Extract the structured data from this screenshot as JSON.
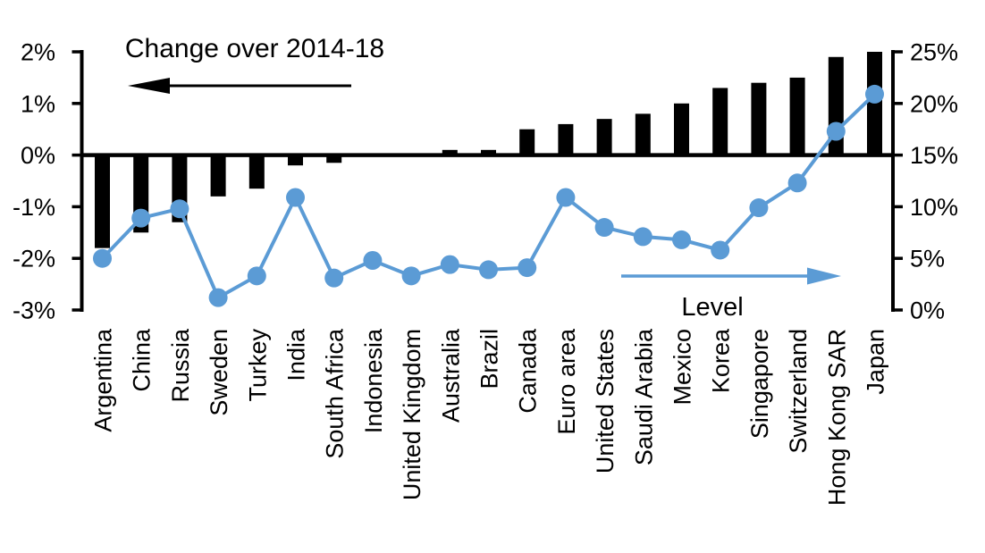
{
  "chart_data": {
    "type": "bar",
    "subtype": "bar-line-combo",
    "title": "",
    "categories": [
      "Argentina",
      "China",
      "Russia",
      "Sweden",
      "Turkey",
      "India",
      "South Africa",
      "Indonesia",
      "United Kingdom",
      "Australia",
      "Brazil",
      "Canada",
      "Euro area",
      "United States",
      "Saudi Arabia",
      "Mexico",
      "Korea",
      "Singapore",
      "Switzerland",
      "Hong Kong SAR",
      "Japan"
    ],
    "series": [
      {
        "name": "Change over 2014-18",
        "type": "bar",
        "axis": "left",
        "color": "#000000",
        "values": [
          -1.8,
          -1.5,
          -1.3,
          -0.8,
          -0.65,
          -0.2,
          -0.15,
          0,
          0,
          0.1,
          0.1,
          0.5,
          0.6,
          0.7,
          0.8,
          1.0,
          1.3,
          1.4,
          1.5,
          1.9,
          2.0
        ]
      },
      {
        "name": "Level",
        "type": "line",
        "axis": "right",
        "color": "#5B9BD5",
        "values": [
          5.0,
          8.9,
          9.8,
          1.2,
          3.3,
          10.9,
          3.1,
          4.8,
          3.3,
          4.4,
          3.9,
          4.1,
          10.9,
          8.0,
          7.1,
          6.8,
          5.8,
          9.9,
          12.3,
          17.3,
          20.9
        ]
      }
    ],
    "left_axis": {
      "min": -3,
      "max": 2,
      "tick_labels": [
        "2%",
        "1%",
        "0%",
        "-1%",
        "-2%",
        "-3%"
      ],
      "tick_values": [
        2,
        1,
        0,
        -1,
        -2,
        -3
      ]
    },
    "right_axis": {
      "min": 0,
      "max": 25,
      "tick_labels": [
        "25%",
        "20%",
        "15%",
        "10%",
        "5%",
        "0%"
      ],
      "tick_values": [
        25,
        20,
        15,
        10,
        5,
        0
      ]
    },
    "annotations": {
      "bar_label": "Change over 2014-18",
      "line_label": "Level",
      "bar_arrow_direction": "left",
      "line_arrow_direction": "right"
    },
    "grid": false,
    "legend_position": "none"
  }
}
